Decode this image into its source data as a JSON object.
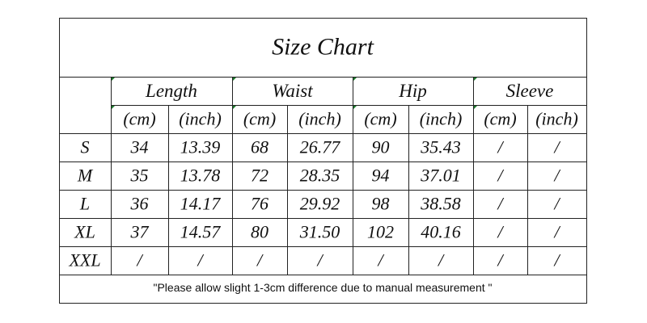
{
  "title": "Size Chart",
  "columns": [
    {
      "label": "Length",
      "units": [
        "(cm)",
        "(inch)"
      ]
    },
    {
      "label": "Waist",
      "units": [
        "(cm)",
        "(inch)"
      ]
    },
    {
      "label": "Hip",
      "units": [
        "(cm)",
        "(inch)"
      ]
    },
    {
      "label": "Sleeve",
      "units": [
        "(cm)",
        "(inch)"
      ]
    }
  ],
  "rows": [
    {
      "size": "S",
      "cells": [
        "34",
        "13.39",
        "68",
        "26.77",
        "90",
        "35.43",
        "/",
        "/"
      ]
    },
    {
      "size": "M",
      "cells": [
        "35",
        "13.78",
        "72",
        "28.35",
        "94",
        "37.01",
        "/",
        "/"
      ]
    },
    {
      "size": "L",
      "cells": [
        "36",
        "14.17",
        "76",
        "29.92",
        "98",
        "38.58",
        "/",
        "/"
      ]
    },
    {
      "size": "XL",
      "cells": [
        "37",
        "14.57",
        "80",
        "31.50",
        "102",
        "40.16",
        "/",
        "/"
      ]
    },
    {
      "size": "XXL",
      "cells": [
        "/",
        "/",
        "/",
        "/",
        "/",
        "/",
        "/",
        "/"
      ]
    }
  ],
  "note": "\"Please allow slight 1-3cm difference due to manual measurement \""
}
